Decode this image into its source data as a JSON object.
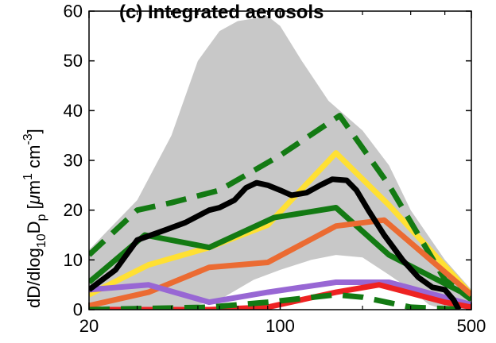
{
  "chart_data": {
    "type": "line",
    "title": "(c) Integrated aerosols",
    "ylabel_parts": [
      "dD/dlog",
      "10",
      "D",
      "p",
      " [",
      "μ",
      "m",
      "1",
      " cm",
      "-3",
      "]"
    ],
    "xscale": "log",
    "xlim": [
      20,
      500
    ],
    "ylim": [
      0,
      60
    ],
    "xticks": [
      20,
      100,
      500
    ],
    "xtick_labels": [
      "20",
      "100",
      "500"
    ],
    "yticks": [
      0,
      10,
      20,
      30,
      40,
      50,
      60
    ],
    "ytick_labels": [
      "0",
      "10",
      "20",
      "30",
      "40",
      "50",
      "60"
    ],
    "grid": false,
    "colors": {
      "envelope": "#c8c8c8",
      "axes": "#000000"
    },
    "envelope": {
      "upper": [
        [
          20,
          12
        ],
        [
          30,
          22
        ],
        [
          40,
          35
        ],
        [
          50,
          50
        ],
        [
          60,
          56
        ],
        [
          70,
          58
        ],
        [
          80,
          58.5
        ],
        [
          90,
          59
        ],
        [
          100,
          57
        ],
        [
          120,
          50
        ],
        [
          150,
          42
        ],
        [
          200,
          36
        ],
        [
          250,
          29
        ],
        [
          300,
          20
        ],
        [
          400,
          10
        ],
        [
          500,
          4
        ]
      ],
      "lower": [
        [
          20,
          0
        ],
        [
          30,
          0
        ],
        [
          40,
          0
        ],
        [
          50,
          1
        ],
        [
          60,
          2
        ],
        [
          80,
          6
        ],
        [
          100,
          8
        ],
        [
          130,
          10
        ],
        [
          160,
          11
        ],
        [
          200,
          10.5
        ],
        [
          250,
          7
        ],
        [
          300,
          4
        ],
        [
          350,
          1
        ],
        [
          400,
          0
        ],
        [
          500,
          0
        ]
      ]
    },
    "series": [
      {
        "color": "#ffe033",
        "dash": false,
        "width": 7,
        "values": [
          [
            20,
            3
          ],
          [
            33,
            9
          ],
          [
            55,
            12.5
          ],
          [
            90,
            17
          ],
          [
            160,
            31.5
          ],
          [
            250,
            21
          ],
          [
            500,
            3
          ]
        ]
      },
      {
        "color": "#137a13",
        "dash": true,
        "width": 7,
        "values": [
          [
            20,
            11
          ],
          [
            30,
            20
          ],
          [
            40,
            21.5
          ],
          [
            60,
            24
          ],
          [
            100,
            31
          ],
          [
            165,
            39
          ],
          [
            250,
            25
          ],
          [
            400,
            6
          ],
          [
            500,
            2
          ]
        ]
      },
      {
        "color": "#137a13",
        "dash": false,
        "width": 7,
        "values": [
          [
            20,
            5.5
          ],
          [
            32,
            15
          ],
          [
            55,
            12.5
          ],
          [
            95,
            18.5
          ],
          [
            160,
            20.5
          ],
          [
            250,
            11
          ],
          [
            500,
            2.5
          ]
        ]
      },
      {
        "color": "#eb6b32",
        "dash": false,
        "width": 7,
        "values": [
          [
            20,
            0.8
          ],
          [
            33,
            3.5
          ],
          [
            55,
            8.5
          ],
          [
            90,
            9.5
          ],
          [
            160,
            16.8
          ],
          [
            240,
            18
          ],
          [
            500,
            3
          ]
        ]
      },
      {
        "color": "#9867d4",
        "dash": false,
        "width": 7,
        "values": [
          [
            20,
            4
          ],
          [
            33,
            5
          ],
          [
            55,
            1.5
          ],
          [
            90,
            3.5
          ],
          [
            160,
            5.5
          ],
          [
            250,
            5.5
          ],
          [
            500,
            1
          ]
        ]
      },
      {
        "color": "#ee2222",
        "dash": false,
        "width": 7,
        "values": [
          [
            20,
            0
          ],
          [
            55,
            0
          ],
          [
            90,
            0.5
          ],
          [
            160,
            3.5
          ],
          [
            230,
            5
          ],
          [
            400,
            1.5
          ],
          [
            500,
            0.5
          ]
        ]
      },
      {
        "color": "#137a13",
        "dash": true,
        "width": 7,
        "values": [
          [
            20,
            0
          ],
          [
            55,
            0.5
          ],
          [
            90,
            1.5
          ],
          [
            160,
            3
          ],
          [
            200,
            2.5
          ],
          [
            300,
            0.5
          ],
          [
            480,
            0
          ]
        ]
      },
      {
        "color": "#000000",
        "dash": false,
        "width": 7,
        "values": [
          [
            20,
            4
          ],
          [
            25,
            8
          ],
          [
            30,
            14
          ],
          [
            38,
            16
          ],
          [
            45,
            17.5
          ],
          [
            55,
            20
          ],
          [
            60,
            20.5
          ],
          [
            68,
            22
          ],
          [
            75,
            24.5
          ],
          [
            82,
            25.5
          ],
          [
            90,
            25
          ],
          [
            100,
            24
          ],
          [
            110,
            23
          ],
          [
            125,
            23.5
          ],
          [
            140,
            25
          ],
          [
            155,
            26.2
          ],
          [
            175,
            26
          ],
          [
            190,
            24
          ],
          [
            210,
            20
          ],
          [
            240,
            15
          ],
          [
            280,
            10
          ],
          [
            320,
            6.5
          ],
          [
            360,
            4.5
          ],
          [
            400,
            4
          ],
          [
            430,
            2
          ],
          [
            450,
            0
          ]
        ]
      }
    ]
  }
}
